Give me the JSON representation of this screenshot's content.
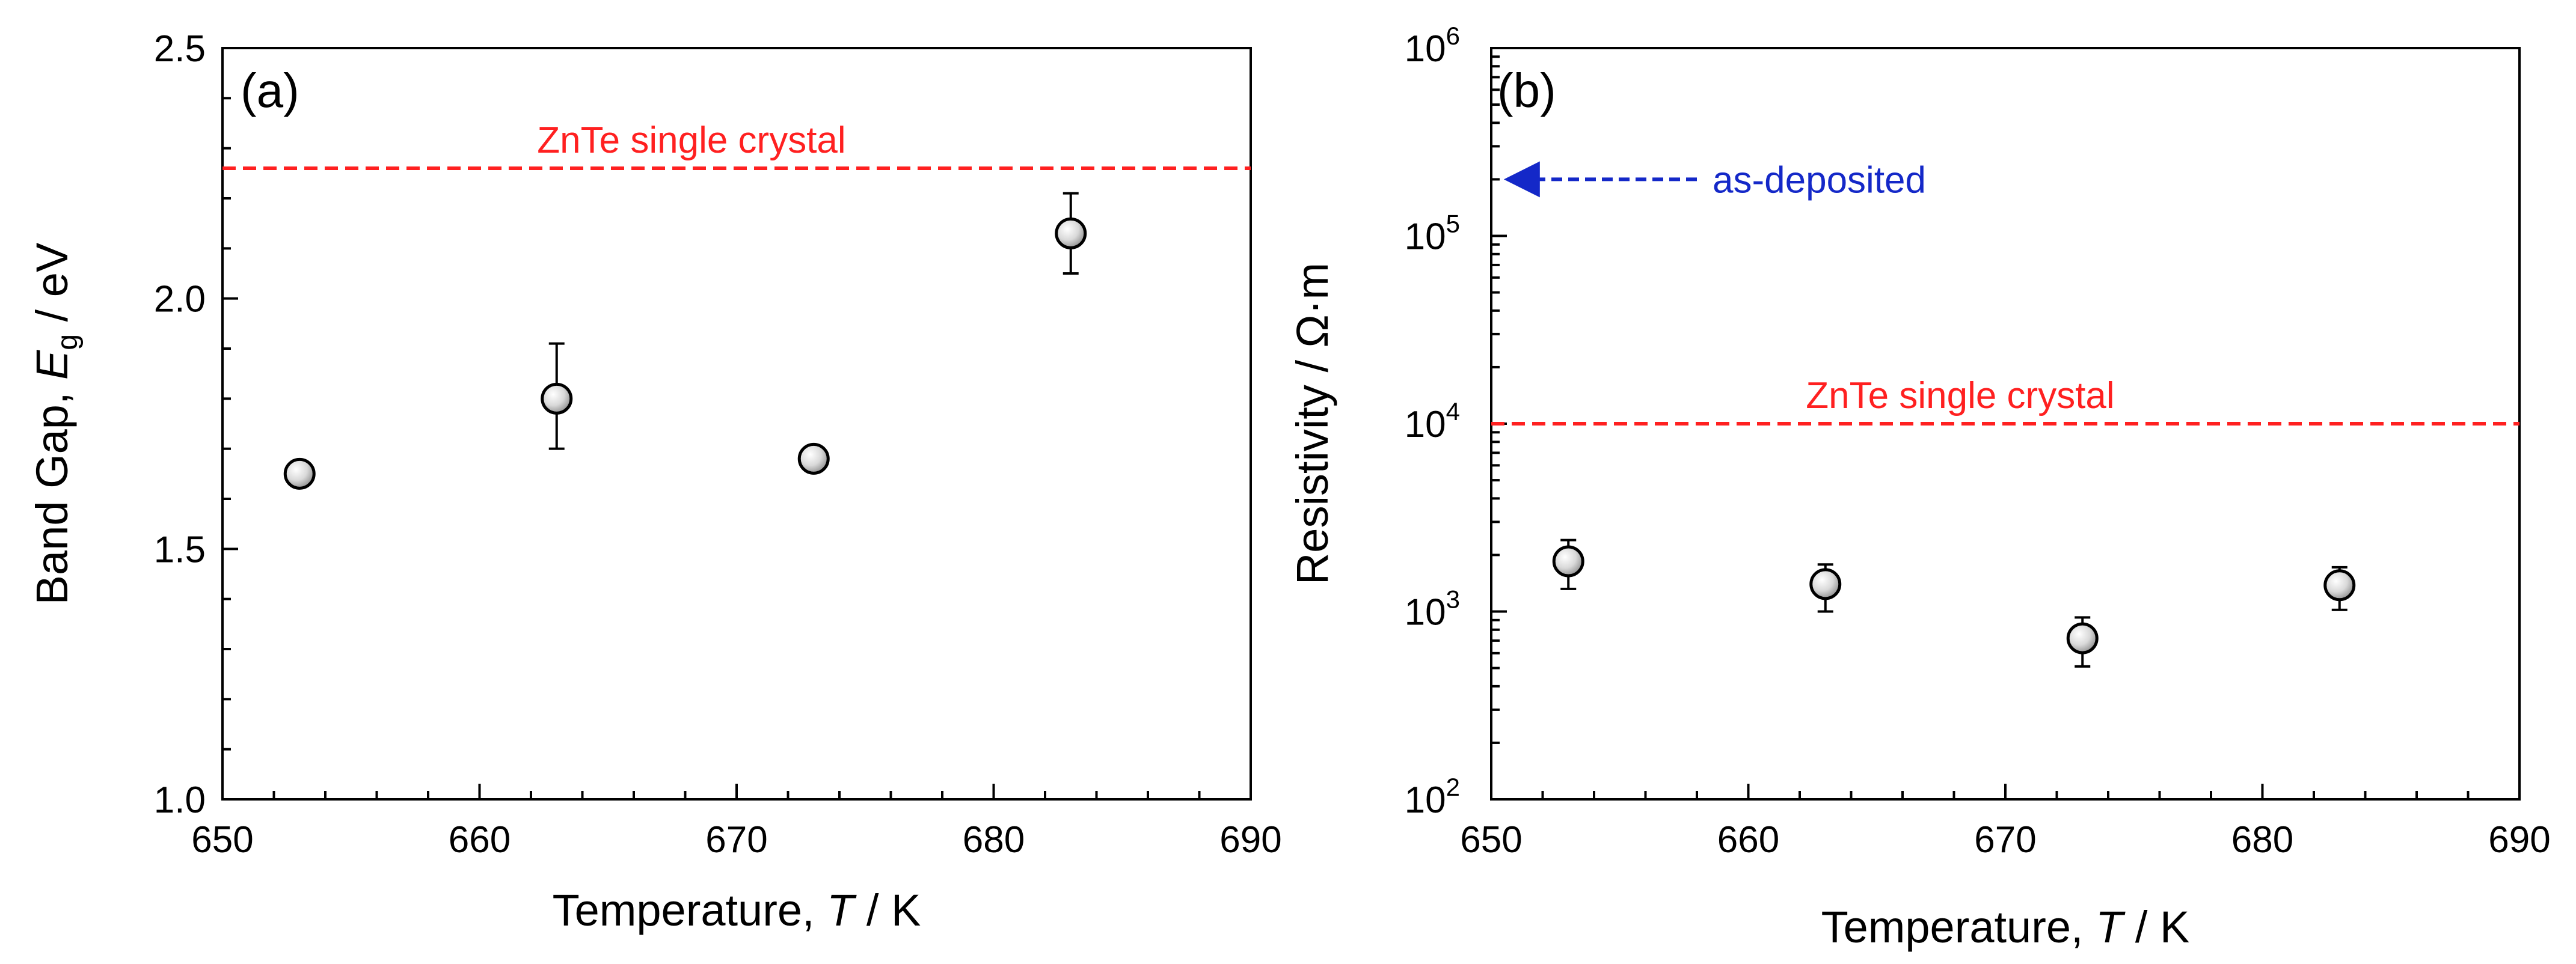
{
  "colors": {
    "reference_line": "#ff2020",
    "annotation": "#1428c8",
    "marker_fill": "#d9d9d9",
    "axis": "#000000"
  },
  "chart_data": [
    {
      "type": "scatter",
      "panel_label": "(a)",
      "xlabel": "Temperature, T / K",
      "xlabel_parts": [
        "Temperature, ",
        "T",
        " / K"
      ],
      "ylabel": "Band Gap, Eg / eV",
      "ylabel_parts": [
        "Band Gap, ",
        "E",
        "g",
        " / eV"
      ],
      "xlim": [
        650,
        690
      ],
      "ylim": [
        1.0,
        2.5
      ],
      "yscale": "linear",
      "x_ticks": [
        650,
        660,
        670,
        680,
        690
      ],
      "x_tick_labels": [
        "650",
        "660",
        "670",
        "680",
        "690"
      ],
      "y_ticks": [
        1.0,
        1.5,
        2.0,
        2.5
      ],
      "y_tick_labels": [
        "1.0",
        "1.5",
        "2.0",
        "2.5"
      ],
      "series": [
        {
          "name": "Band gap",
          "x": [
            653,
            663,
            673,
            683
          ],
          "y": [
            1.65,
            1.8,
            1.68,
            2.13
          ],
          "y_err_low": [
            1.65,
            1.7,
            1.68,
            2.05
          ],
          "y_err_high": [
            1.65,
            1.91,
            1.68,
            2.21
          ]
        }
      ],
      "reference_line": {
        "y": 2.26,
        "label": "ZnTe single crystal"
      }
    },
    {
      "type": "scatter",
      "panel_label": "(b)",
      "xlabel": "Temperature, T / K",
      "xlabel_parts": [
        "Temperature, ",
        "T",
        " / K"
      ],
      "ylabel": "Resistivity / Ω·m",
      "xlim": [
        650,
        690
      ],
      "ylim": [
        100,
        1000000
      ],
      "yscale": "log",
      "x_ticks": [
        650,
        660,
        670,
        680,
        690
      ],
      "x_tick_labels": [
        "650",
        "660",
        "670",
        "680",
        "690"
      ],
      "y_ticks": [
        100,
        1000,
        10000,
        100000,
        1000000
      ],
      "y_tick_labels": [
        {
          "base": "10",
          "exp": "2"
        },
        {
          "base": "10",
          "exp": "3"
        },
        {
          "base": "10",
          "exp": "4"
        },
        {
          "base": "10",
          "exp": "5"
        },
        {
          "base": "10",
          "exp": "6"
        }
      ],
      "series": [
        {
          "name": "Resistivity",
          "x": [
            653,
            663,
            673,
            683
          ],
          "y": [
            1850,
            1400,
            720,
            1380
          ],
          "y_err_low": [
            1320,
            1000,
            510,
            1020
          ],
          "y_err_high": [
            2400,
            1780,
            930,
            1720
          ]
        }
      ],
      "reference_line": {
        "y": 10000,
        "label": "ZnTe single crystal"
      },
      "annotation": {
        "label": "as-deposited",
        "y": 200000,
        "x_start": 658,
        "x_end": 650.3
      }
    }
  ]
}
